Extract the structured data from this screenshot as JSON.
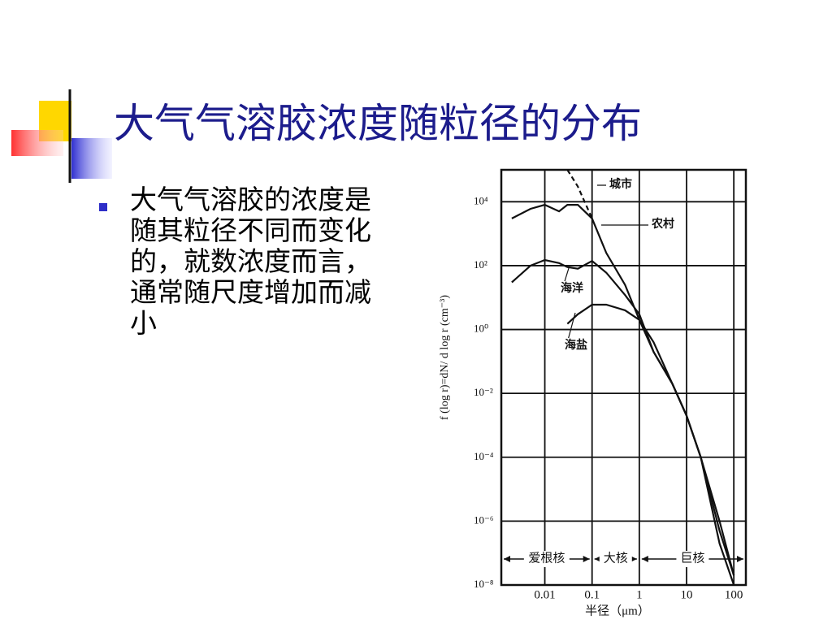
{
  "title": "大气气溶胶浓度随粒径的分布",
  "bullets": [
    "大气气溶胶的浓度是随其粒径不同而变化的，就数浓度而言，通常随尺度增加而减小"
  ],
  "chart_data": {
    "type": "line",
    "x_label": "半径（μm）",
    "y_label": "f (log r)=dN/ d log r (cm⁻³)",
    "x": [
      0.002,
      0.005,
      0.01,
      0.02,
      0.03,
      0.05,
      0.1,
      0.2,
      0.5,
      1,
      2,
      5,
      10,
      20,
      50,
      100
    ],
    "series": [
      {
        "name": "城市",
        "color": "#111111",
        "dashed": true,
        "values": [
          null,
          null,
          null,
          null,
          100000,
          30000,
          3000,
          null,
          null,
          null,
          null,
          null,
          null,
          null,
          null,
          null
        ]
      },
      {
        "name": "农村",
        "color": "#111111",
        "values": [
          3000,
          6000,
          8000,
          5000,
          8000,
          8000,
          3000,
          250,
          25,
          2,
          0.2,
          0.02,
          0.002,
          0.0001,
          1e-06,
          2e-08
        ]
      },
      {
        "name": "海洋",
        "color": "#111111",
        "values": [
          30,
          100,
          150,
          120,
          90,
          80,
          140,
          60,
          12,
          3,
          0.2,
          0.02,
          0.002,
          0.0001,
          5e-07,
          2e-08
        ]
      },
      {
        "name": "海盐",
        "color": "#111111",
        "values": [
          null,
          null,
          null,
          null,
          1.5,
          3,
          6,
          6,
          4,
          2,
          0.4,
          0.02,
          0.002,
          0.0001,
          2e-07,
          1e-08
        ]
      }
    ],
    "xlim": [
      0.0012,
      180
    ],
    "ylim": [
      1e-08,
      100000
    ],
    "x_log": true,
    "y_log": true,
    "grid": true,
    "xticks": [
      0.01,
      0.1,
      1,
      10,
      100
    ],
    "yticks": [
      {
        "value": 10000,
        "label": "10⁴"
      },
      {
        "value": 100,
        "label": "10²"
      },
      {
        "value": 1,
        "label": "10⁰"
      },
      {
        "value": 0.01,
        "label": "10⁻²"
      },
      {
        "value": 0.0001,
        "label": "10⁻⁴"
      },
      {
        "value": 1e-06,
        "label": "10⁻⁶"
      },
      {
        "value": 1e-08,
        "label": "10⁻⁸"
      }
    ],
    "regions": [
      {
        "label": "爱根核",
        "range": [
          0.0012,
          0.1
        ]
      },
      {
        "label": "大核",
        "range": [
          0.1,
          1
        ]
      },
      {
        "label": "巨核",
        "range": [
          1,
          180
        ]
      }
    ]
  }
}
